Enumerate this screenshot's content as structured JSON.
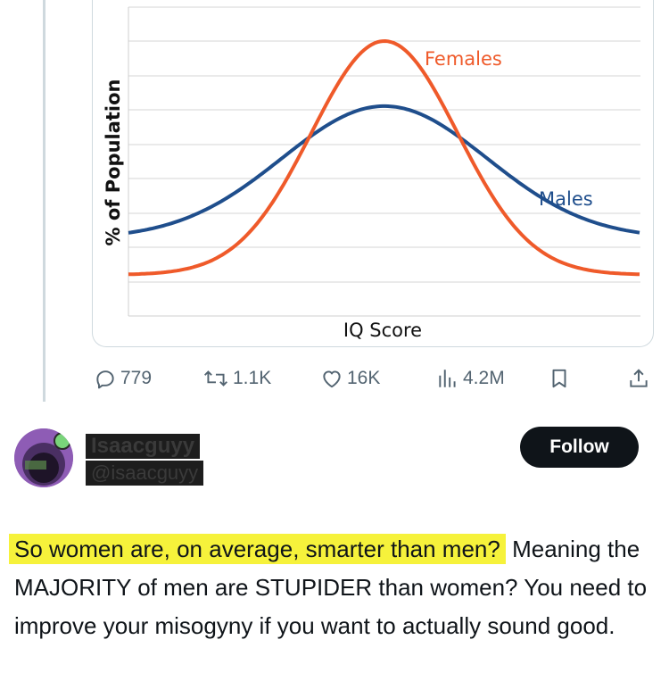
{
  "chart_data": {
    "type": "line",
    "title": "",
    "xlabel": "IQ Score",
    "ylabel": "% of Population",
    "grid": true,
    "series": [
      {
        "name": "Females",
        "color": "#ef5a2a",
        "mean": 0,
        "relative_peak": 1.0,
        "relative_tail": 0.03
      },
      {
        "name": "Males",
        "color": "#1f4e8c",
        "mean": 0,
        "relative_peak": 0.73,
        "relative_tail": 0.18
      }
    ]
  },
  "actions": {
    "replies": "779",
    "reposts": "1.1K",
    "likes": "16K",
    "views": "4.2M"
  },
  "reply": {
    "name": "Isaacguyy",
    "handle": "@isaacguyy",
    "follow_label": "Follow",
    "highlighted_text": "So women are, on average, smarter than men?",
    "body_text": "Meaning the MAJORITY of men are STUPIDER than women? You need to improve your misogyny if you want to actually sound good."
  },
  "colors": {
    "highlight": "#f6f23b",
    "icon_gray": "#536471",
    "female_line": "#ef5a2a",
    "male_line": "#1f4e8c"
  }
}
